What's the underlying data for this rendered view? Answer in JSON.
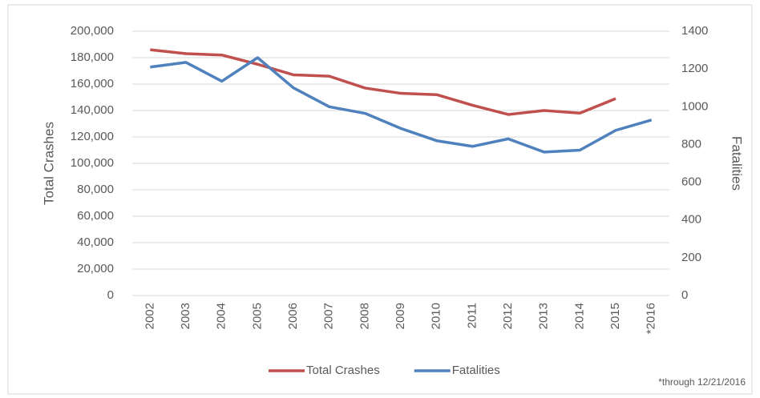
{
  "chart_data": {
    "type": "line",
    "categories": [
      "2002",
      "2003",
      "2004",
      "2005",
      "2006",
      "2007",
      "2008",
      "2009",
      "2010",
      "2011",
      "2012",
      "2013",
      "2014",
      "2015",
      "*2016"
    ],
    "series": [
      {
        "name": "Total Crashes",
        "color": "#c0504d",
        "values": [
          186000,
          183000,
          182000,
          175000,
          167000,
          166000,
          157000,
          153000,
          152000,
          144000,
          137000,
          140000,
          138000,
          149000,
          null
        ]
      },
      {
        "name": "Fatalities",
        "color": "#4f81bd",
        "axis": "y2",
        "values": [
          1210,
          1235,
          1135,
          1260,
          1100,
          1000,
          965,
          885,
          820,
          790,
          830,
          760,
          770,
          875,
          930
        ]
      }
    ],
    "ylabel": "Total Crashes",
    "y2label": "Fatalities",
    "ylim": [
      0,
      200000
    ],
    "yticks": [
      0,
      {
        "value": 20000,
        "label": "20,000"
      },
      {
        "value": 40000,
        "label": "40,000"
      },
      {
        "value": 60000,
        "label": "60,000"
      },
      {
        "value": 80000,
        "label": "80,000"
      },
      {
        "value": 100000,
        "label": "100,000"
      },
      {
        "value": 120000,
        "label": "120,000"
      },
      {
        "value": 140000,
        "label": "140,000"
      },
      {
        "value": 160000,
        "label": "160,000"
      },
      {
        "value": 180000,
        "label": "180,000"
      },
      {
        "value": 200000,
        "label": "200,000"
      }
    ],
    "y2lim": [
      0,
      1400
    ],
    "y2ticks": [
      0,
      200,
      400,
      600,
      800,
      1000,
      1200,
      1400
    ],
    "grid": true,
    "legend": "bottom",
    "footnote": "*through 12/21/2016"
  }
}
